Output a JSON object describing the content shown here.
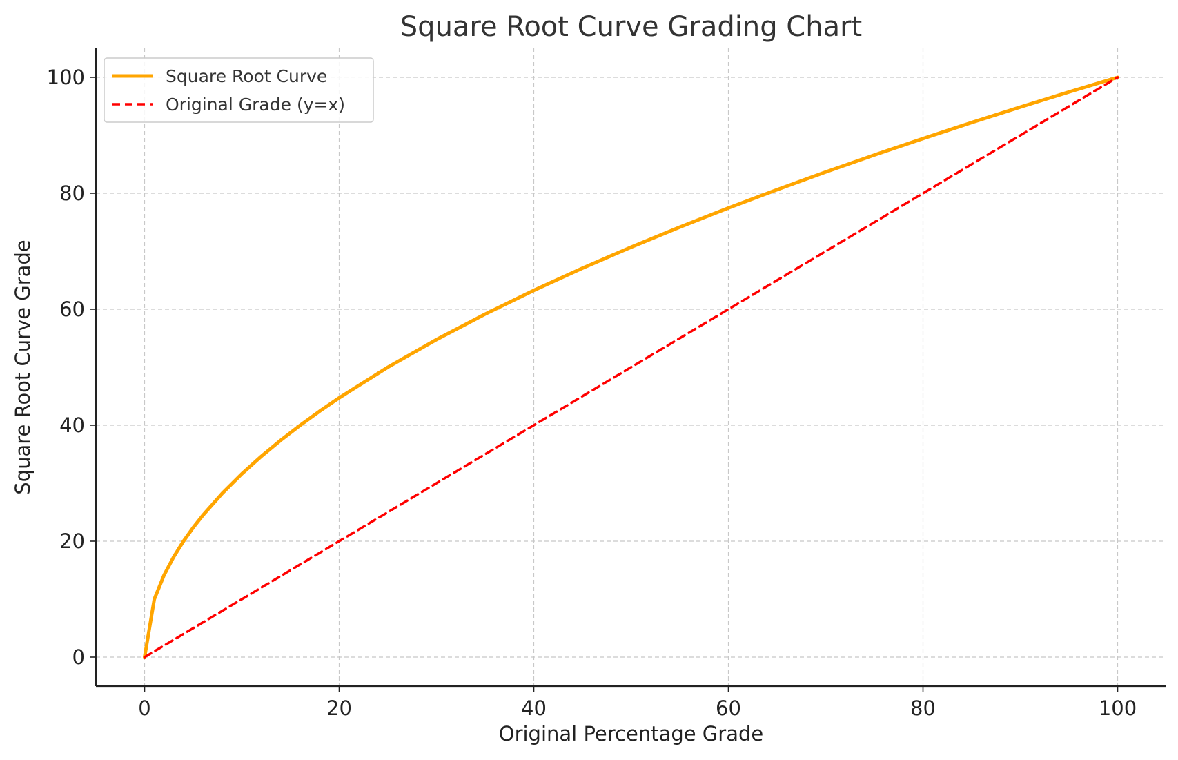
{
  "chart_data": {
    "type": "line",
    "title": "Square Root Curve Grading Chart",
    "xlabel": "Original Percentage Grade",
    "ylabel": "Square Root Curve Grade",
    "xlim": [
      -5,
      105
    ],
    "ylim": [
      -5,
      105
    ],
    "xticks": [
      0,
      20,
      40,
      60,
      80,
      100
    ],
    "yticks": [
      0,
      20,
      40,
      60,
      80,
      100
    ],
    "xtick_labels": [
      "0",
      "20",
      "40",
      "60",
      "80",
      "100"
    ],
    "ytick_labels": [
      "0",
      "20",
      "40",
      "60",
      "80",
      "100"
    ],
    "grid": true,
    "legend_position": "top-left",
    "series": [
      {
        "name": "Square Root Curve",
        "color": "#FFA500",
        "line_style": "solid",
        "x": [
          0,
          1,
          2,
          3,
          4,
          5,
          6,
          8,
          10,
          12,
          14,
          16,
          18,
          20,
          25,
          30,
          35,
          40,
          45,
          50,
          55,
          60,
          65,
          70,
          75,
          80,
          85,
          90,
          95,
          100
        ],
        "y": [
          0,
          10,
          14.14,
          17.32,
          20,
          22.36,
          24.49,
          28.28,
          31.62,
          34.64,
          37.42,
          40,
          42.43,
          44.72,
          50,
          54.77,
          59.16,
          63.25,
          67.08,
          70.71,
          74.16,
          77.46,
          80.62,
          83.67,
          86.6,
          89.44,
          92.2,
          94.87,
          97.47,
          100
        ]
      },
      {
        "name": "Original Grade (y=x)",
        "color": "#FF0000",
        "line_style": "dashed",
        "x": [
          0,
          100
        ],
        "y": [
          0,
          100
        ]
      }
    ]
  }
}
